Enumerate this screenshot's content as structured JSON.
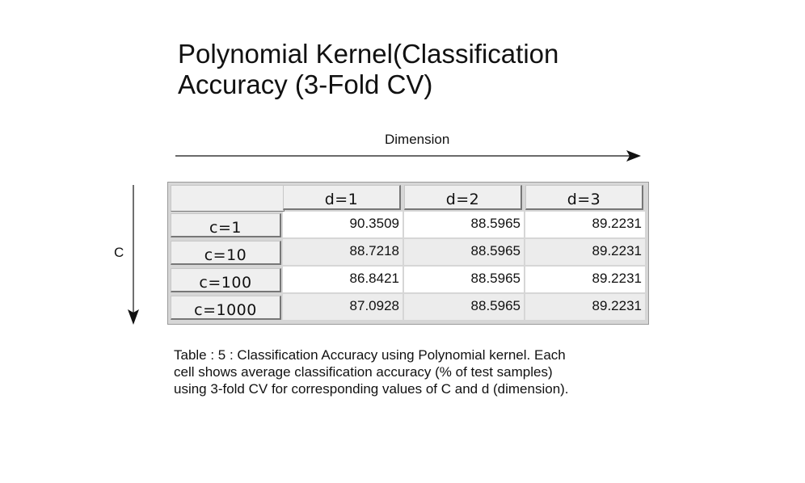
{
  "title": {
    "line1": "Polynomial Kernel(Classification",
    "line2": "Accuracy (3-Fold CV)"
  },
  "axes": {
    "column_axis_label": "Dimension",
    "row_axis_label": "C"
  },
  "table": {
    "columns": [
      "d=1",
      "d=2",
      "d=3"
    ],
    "rows": [
      {
        "label": "c=1",
        "values": [
          "90.3509",
          "88.5965",
          "89.2231"
        ]
      },
      {
        "label": "c=10",
        "values": [
          "88.7218",
          "88.5965",
          "89.2231"
        ]
      },
      {
        "label": "c=100",
        "values": [
          "86.8421",
          "88.5965",
          "89.2231"
        ]
      },
      {
        "label": "c=1000",
        "values": [
          "87.0928",
          "88.5965",
          "89.2231"
        ]
      }
    ]
  },
  "caption": {
    "line1": "Table : 5 : Classification Accuracy using Polynomial kernel. Each",
    "line2": "cell shows average classification accuracy (% of  test samples)",
    "line3": "using 3-fold CV for corresponding values of C and d (dimension)."
  },
  "colors": {
    "row_white": "#ffffff",
    "row_gray": "#ececec",
    "header_bg": "#efefef",
    "text": "#111111"
  }
}
